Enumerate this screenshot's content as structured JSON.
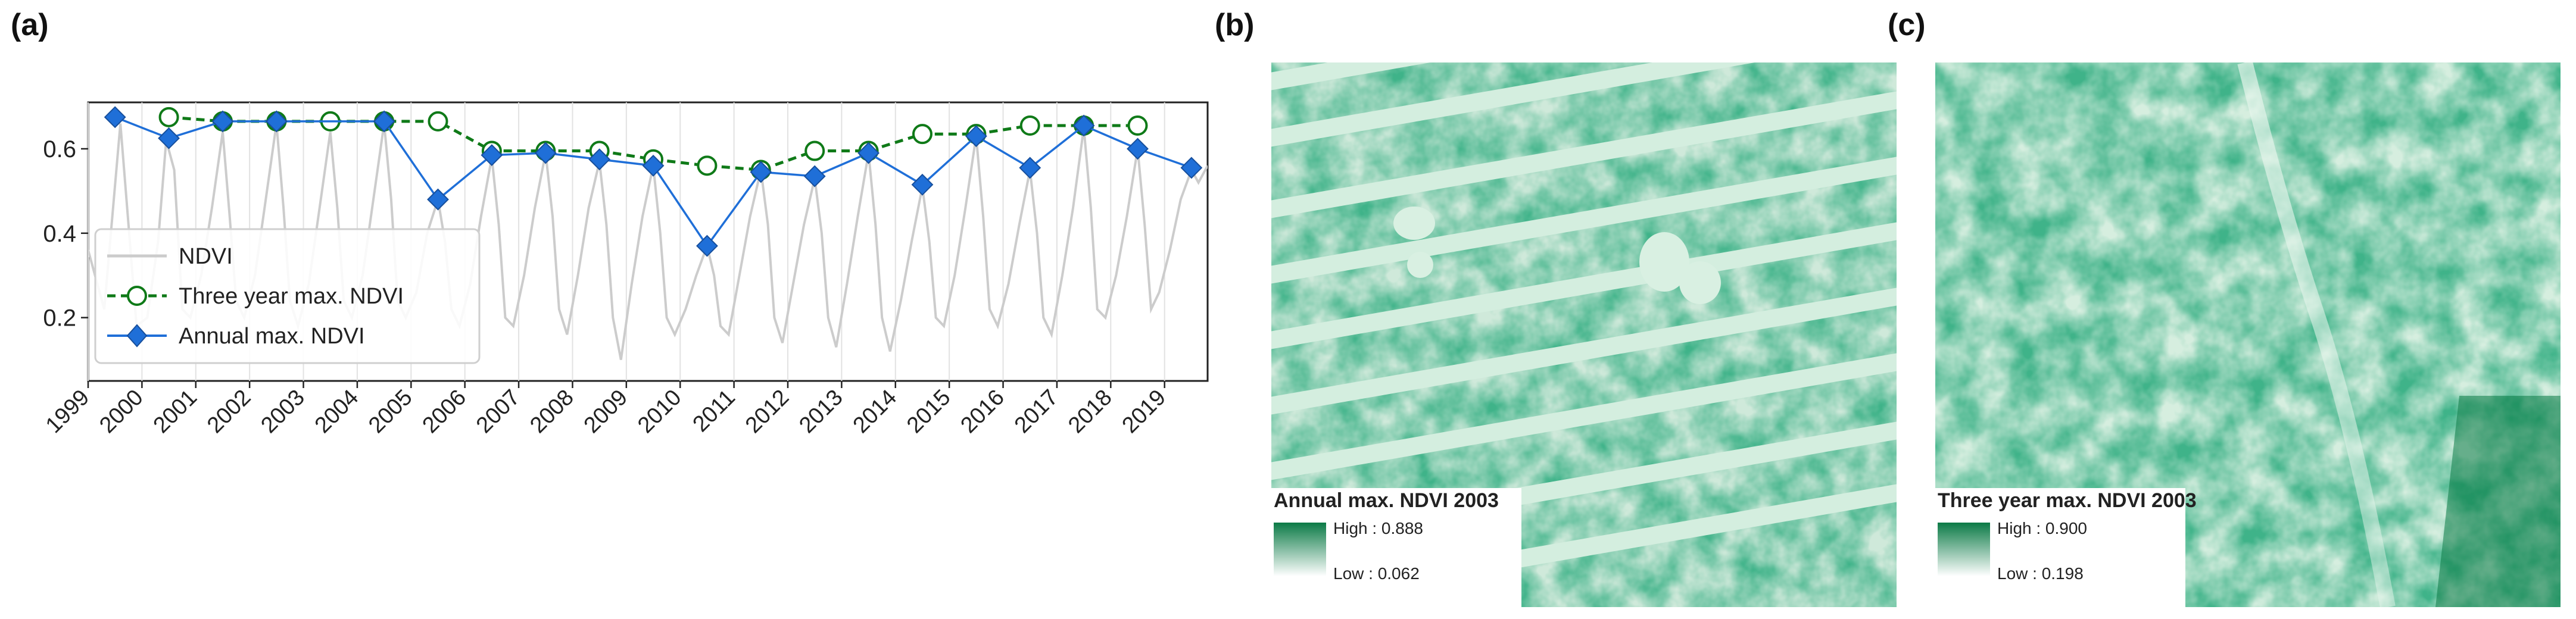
{
  "panels": {
    "a": "(a)",
    "b": "(b)",
    "c": "(c)"
  },
  "colors": {
    "ndvi": "#cccccc",
    "three_year": "#0f7a18",
    "annual": "#1f6fd8",
    "map_dark": "#0b7a46",
    "map_light": "#e6f5ec"
  },
  "chart_data": {
    "type": "line",
    "title": "",
    "xlabel": "",
    "ylabel": "",
    "xlim": [
      1999,
      2019.8
    ],
    "ylim": [
      0.05,
      0.71
    ],
    "grid": "vertical",
    "legend_position": "center-left",
    "x_tick_labels": [
      "1999",
      "2000",
      "2001",
      "2002",
      "2003",
      "2004",
      "2005",
      "2006",
      "2007",
      "2008",
      "2009",
      "2010",
      "2011",
      "2012",
      "2013",
      "2014",
      "2015",
      "2016",
      "2017",
      "2018",
      "2019"
    ],
    "y_ticks": [
      0.2,
      0.4,
      0.6
    ],
    "y_tick_labels": [
      "0.2",
      "0.4",
      "0.6"
    ],
    "series": [
      {
        "name": "NDVI",
        "style": "line",
        "x": [
          1999.0,
          1999.3,
          1999.6,
          1999.75,
          1999.9,
          2000.1,
          2000.3,
          2000.45,
          2000.6,
          2000.75,
          2000.9,
          2001.1,
          2001.3,
          2001.5,
          2001.63,
          2001.75,
          2001.9,
          2002.1,
          2002.3,
          2002.5,
          2002.63,
          2002.75,
          2002.9,
          2003.1,
          2003.3,
          2003.5,
          2003.63,
          2003.75,
          2003.9,
          2004.1,
          2004.3,
          2004.5,
          2004.63,
          2004.75,
          2004.9,
          2005.1,
          2005.3,
          2005.5,
          2005.63,
          2005.75,
          2005.9,
          2006.1,
          2006.3,
          2006.5,
          2006.63,
          2006.75,
          2006.9,
          2007.1,
          2007.3,
          2007.5,
          2007.63,
          2007.75,
          2007.9,
          2008.1,
          2008.3,
          2008.5,
          2008.63,
          2008.75,
          2008.9,
          2009.1,
          2009.3,
          2009.5,
          2009.63,
          2009.75,
          2009.9,
          2010.1,
          2010.3,
          2010.5,
          2010.63,
          2010.75,
          2010.9,
          2011.1,
          2011.3,
          2011.5,
          2011.63,
          2011.75,
          2011.9,
          2012.1,
          2012.3,
          2012.5,
          2012.63,
          2012.75,
          2012.9,
          2013.1,
          2013.3,
          2013.5,
          2013.63,
          2013.75,
          2013.9,
          2014.1,
          2014.3,
          2014.5,
          2014.63,
          2014.75,
          2014.9,
          2015.1,
          2015.3,
          2015.5,
          2015.63,
          2015.75,
          2015.9,
          2016.1,
          2016.3,
          2016.5,
          2016.63,
          2016.75,
          2016.9,
          2017.1,
          2017.3,
          2017.5,
          2017.63,
          2017.75,
          2017.9,
          2018.1,
          2018.3,
          2018.5,
          2018.63,
          2018.75,
          2018.9,
          2019.1,
          2019.3,
          2019.5,
          2019.63,
          2019.8
        ],
        "y": [
          0.36,
          0.22,
          0.66,
          0.42,
          0.18,
          0.2,
          0.38,
          0.62,
          0.55,
          0.22,
          0.2,
          0.3,
          0.46,
          0.64,
          0.44,
          0.24,
          0.2,
          0.3,
          0.48,
          0.66,
          0.46,
          0.24,
          0.18,
          0.28,
          0.46,
          0.64,
          0.46,
          0.24,
          0.2,
          0.3,
          0.48,
          0.66,
          0.48,
          0.24,
          0.2,
          0.26,
          0.4,
          0.48,
          0.38,
          0.22,
          0.18,
          0.28,
          0.44,
          0.58,
          0.42,
          0.2,
          0.18,
          0.3,
          0.46,
          0.59,
          0.44,
          0.22,
          0.16,
          0.3,
          0.46,
          0.57,
          0.42,
          0.2,
          0.1,
          0.28,
          0.44,
          0.56,
          0.4,
          0.2,
          0.16,
          0.22,
          0.3,
          0.37,
          0.3,
          0.18,
          0.16,
          0.3,
          0.44,
          0.55,
          0.42,
          0.2,
          0.14,
          0.28,
          0.42,
          0.53,
          0.4,
          0.2,
          0.13,
          0.28,
          0.44,
          0.59,
          0.42,
          0.2,
          0.12,
          0.24,
          0.38,
          0.51,
          0.38,
          0.2,
          0.18,
          0.3,
          0.46,
          0.63,
          0.44,
          0.22,
          0.18,
          0.28,
          0.42,
          0.55,
          0.4,
          0.2,
          0.16,
          0.3,
          0.46,
          0.65,
          0.46,
          0.22,
          0.2,
          0.3,
          0.44,
          0.6,
          0.42,
          0.22,
          0.26,
          0.36,
          0.48,
          0.55,
          0.52,
          0.56
        ]
      },
      {
        "name": "Three year max. NDVI",
        "style": "dashed-circle",
        "x": [
          2000.5,
          2001.5,
          2002.5,
          2003.5,
          2004.5,
          2005.5,
          2006.5,
          2007.5,
          2008.5,
          2009.5,
          2010.5,
          2011.5,
          2012.5,
          2013.5,
          2014.5,
          2015.5,
          2016.5,
          2017.5,
          2018.5
        ],
        "y": [
          0.675,
          0.665,
          0.665,
          0.665,
          0.665,
          0.665,
          0.595,
          0.595,
          0.595,
          0.575,
          0.56,
          0.55,
          0.595,
          0.595,
          0.635,
          0.635,
          0.655,
          0.655,
          0.655
        ]
      },
      {
        "name": "Annual max. NDVI",
        "style": "solid-diamond",
        "x": [
          1999.5,
          2000.5,
          2001.5,
          2002.5,
          2003.5,
          2004.5,
          2005.5,
          2006.5,
          2007.5,
          2008.5,
          2009.5,
          2010.5,
          2011.5,
          2012.5,
          2013.5,
          2014.5,
          2015.5,
          2016.5,
          2017.5,
          2018.5,
          2019.5
        ],
        "y": [
          0.675,
          0.625,
          0.665,
          0.665,
          null,
          0.665,
          0.48,
          0.585,
          0.59,
          0.575,
          0.56,
          0.37,
          0.545,
          0.535,
          0.59,
          0.515,
          0.63,
          0.555,
          0.655,
          0.6,
          0.555
        ]
      }
    ]
  },
  "maps": {
    "b": {
      "legend_title": "Annual max. NDVI 2003",
      "high": "High : 0.888",
      "low": "Low : 0.062"
    },
    "c": {
      "legend_title": "Three year max. NDVI 2003",
      "high": "High : 0.900",
      "low": "Low : 0.198"
    }
  }
}
